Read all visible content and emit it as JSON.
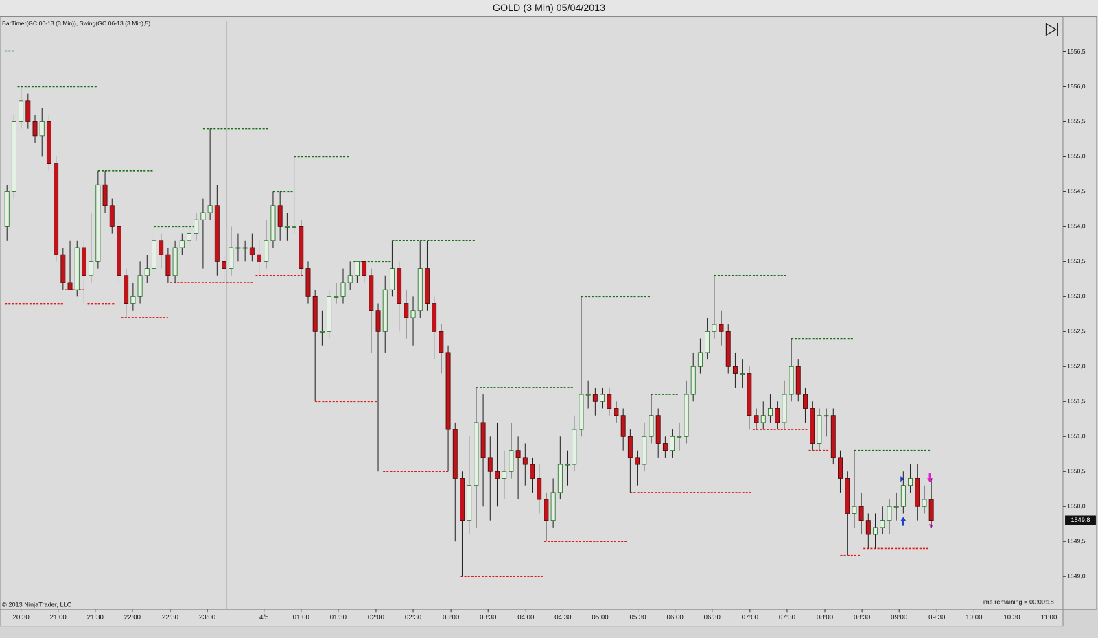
{
  "chart_data": {
    "type": "candlestick",
    "title": "GOLD (3 Min)  05/04/2013",
    "subtitle": "BarTimer(GC 06-13 (3 Min)), Swing(GC 06-13 (3 Min),5)",
    "annotations": [
      "© 2013 NinjaTrader, LLC",
      "Time remaining = 00:00:18"
    ],
    "last_price": {
      "value": 1549.8,
      "label": "1549,8"
    },
    "up_color": "#e4f1e4",
    "up_border": "#1d6b1d",
    "down_color": "#c0141a",
    "down_border": "#4a0808",
    "swing_high_color": "#177017",
    "swing_low_color": "#e01a1a",
    "candles": {
      "open": [
        1554.0,
        1554.5,
        1555.5,
        1555.8,
        1555.5,
        1555.3,
        1555.5,
        1554.9,
        1553.6,
        1553.2,
        1553.1,
        1553.7,
        1553.3,
        1553.5,
        1554.6,
        1554.3,
        1554.0,
        1553.3,
        1552.9,
        1553.0,
        1553.3,
        1553.4,
        1553.8,
        1553.6,
        1553.3,
        1553.7,
        1553.8,
        1553.9,
        1554.1,
        1554.2,
        1554.3,
        1553.5,
        1553.4,
        1553.7,
        1553.7,
        1553.7,
        1553.6,
        1553.5,
        1553.8,
        1554.3,
        1554.0,
        1554.0,
        1554.0,
        1553.4,
        1553.0,
        1552.5,
        1552.5,
        1553.0,
        1553.0,
        1553.2,
        1553.3,
        1553.5,
        1553.3,
        1552.8,
        1552.5,
        1553.1,
        1553.4,
        1552.9,
        1552.7,
        1552.8,
        1553.4,
        1552.9,
        1552.5,
        1552.2,
        1551.1,
        1550.4,
        1549.8,
        1550.3,
        1551.2,
        1550.7,
        1550.5,
        1550.4,
        1550.5,
        1550.8,
        1550.7,
        1550.6,
        1550.4,
        1550.1,
        1549.8,
        1550.2,
        1550.6,
        1550.6,
        1551.1,
        1551.6,
        1551.6,
        1551.5,
        1551.6,
        1551.4,
        1551.3,
        1551.0,
        1550.7,
        1550.6,
        1551.0,
        1551.3,
        1550.9,
        1550.8,
        1551.0,
        1551.0,
        1551.6,
        1552.0,
        1552.2,
        1552.5,
        1552.6,
        1552.5,
        1552.0,
        1551.9,
        1551.9,
        1551.3,
        1551.2,
        1551.3,
        1551.4,
        1551.2,
        1551.6,
        1552.0,
        1551.6,
        1551.4,
        1550.9,
        1551.3,
        1551.3,
        1550.7,
        1550.4,
        1549.9,
        1550.0,
        1549.8,
        1549.6,
        1549.7,
        1549.8,
        1550.0,
        1550.0,
        1550.3,
        1550.4,
        1550.0,
        1550.1
      ],
      "high": [
        1554.6,
        1555.6,
        1556.0,
        1555.9,
        1555.6,
        1555.7,
        1555.6,
        1555.0,
        1553.7,
        1553.8,
        1553.8,
        1553.8,
        1554.2,
        1554.8,
        1554.8,
        1554.4,
        1554.1,
        1553.4,
        1553.2,
        1553.5,
        1553.6,
        1554.0,
        1553.9,
        1553.7,
        1553.8,
        1553.9,
        1554.0,
        1554.2,
        1554.4,
        1555.4,
        1554.6,
        1553.6,
        1554.0,
        1553.9,
        1553.8,
        1553.9,
        1553.8,
        1554.1,
        1554.5,
        1554.5,
        1554.2,
        1555.0,
        1554.1,
        1553.5,
        1553.1,
        1552.8,
        1553.1,
        1553.2,
        1553.4,
        1553.5,
        1553.5,
        1553.5,
        1553.4,
        1552.9,
        1553.3,
        1553.8,
        1553.5,
        1553.1,
        1553.0,
        1553.8,
        1553.8,
        1553.0,
        1552.6,
        1552.3,
        1551.2,
        1550.5,
        1551.0,
        1551.7,
        1551.6,
        1551.0,
        1551.2,
        1550.8,
        1551.2,
        1551.0,
        1550.9,
        1550.7,
        1550.6,
        1550.2,
        1550.4,
        1551.0,
        1550.8,
        1551.3,
        1553.0,
        1551.8,
        1551.7,
        1551.7,
        1551.7,
        1551.5,
        1551.4,
        1551.1,
        1550.8,
        1551.2,
        1551.6,
        1551.4,
        1551.0,
        1551.1,
        1551.2,
        1551.8,
        1552.2,
        1552.4,
        1552.7,
        1553.3,
        1552.8,
        1552.6,
        1552.2,
        1552.1,
        1552.0,
        1551.4,
        1551.5,
        1551.6,
        1551.5,
        1551.8,
        1552.4,
        1552.1,
        1551.7,
        1551.5,
        1551.4,
        1551.4,
        1551.4,
        1550.8,
        1550.5,
        1550.8,
        1550.2,
        1549.9,
        1549.9,
        1550.0,
        1550.1,
        1550.2,
        1550.5,
        1550.6,
        1550.6,
        1550.3,
        1550.4
      ],
      "low": [
        1553.8,
        1554.4,
        1555.4,
        1555.4,
        1555.2,
        1555.0,
        1554.8,
        1553.5,
        1553.1,
        1553.1,
        1553.0,
        1552.9,
        1553.2,
        1553.4,
        1554.2,
        1553.9,
        1553.2,
        1552.7,
        1552.8,
        1552.9,
        1553.2,
        1553.3,
        1553.4,
        1553.2,
        1553.2,
        1553.6,
        1553.7,
        1553.8,
        1553.4,
        1554.1,
        1553.3,
        1553.2,
        1553.3,
        1553.5,
        1553.5,
        1553.5,
        1553.3,
        1553.4,
        1553.7,
        1553.8,
        1553.8,
        1553.9,
        1553.3,
        1552.9,
        1551.5,
        1552.3,
        1552.4,
        1552.9,
        1552.9,
        1553.1,
        1553.2,
        1553.2,
        1552.2,
        1550.5,
        1552.2,
        1553.0,
        1552.5,
        1552.4,
        1552.3,
        1552.7,
        1552.8,
        1552.1,
        1551.9,
        1550.5,
        1549.5,
        1549.0,
        1549.6,
        1549.7,
        1550.0,
        1549.8,
        1550.0,
        1550.1,
        1550.4,
        1550.1,
        1550.3,
        1550.2,
        1549.9,
        1549.5,
        1549.7,
        1550.1,
        1550.3,
        1550.5,
        1551.0,
        1551.4,
        1551.3,
        1551.4,
        1551.3,
        1551.2,
        1550.8,
        1550.2,
        1550.3,
        1550.5,
        1550.9,
        1550.7,
        1550.7,
        1550.7,
        1550.8,
        1550.9,
        1551.5,
        1551.9,
        1552.1,
        1552.4,
        1552.3,
        1551.9,
        1551.7,
        1551.7,
        1551.1,
        1551.1,
        1551.1,
        1551.2,
        1551.1,
        1551.1,
        1551.5,
        1551.5,
        1551.2,
        1550.8,
        1550.8,
        1551.0,
        1550.6,
        1550.2,
        1549.3,
        1549.7,
        1549.6,
        1549.4,
        1549.4,
        1549.6,
        1549.6,
        1549.8,
        1549.9,
        1550.2,
        1549.8,
        1549.9,
        1549.7
      ],
      "close": [
        1554.5,
        1555.5,
        1555.8,
        1555.5,
        1555.3,
        1555.5,
        1554.9,
        1553.6,
        1553.2,
        1553.1,
        1553.7,
        1553.3,
        1553.5,
        1554.6,
        1554.3,
        1554.0,
        1553.3,
        1552.9,
        1553.0,
        1553.3,
        1553.4,
        1553.8,
        1553.6,
        1553.3,
        1553.7,
        1553.8,
        1553.9,
        1554.1,
        1554.2,
        1554.3,
        1553.5,
        1553.4,
        1553.7,
        1553.7,
        1553.7,
        1553.6,
        1553.5,
        1553.8,
        1554.3,
        1554.0,
        1554.0,
        1554.0,
        1553.4,
        1553.0,
        1552.5,
        1552.5,
        1553.0,
        1553.0,
        1553.2,
        1553.3,
        1553.5,
        1553.3,
        1552.8,
        1552.5,
        1553.1,
        1553.4,
        1552.9,
        1552.7,
        1552.8,
        1553.4,
        1552.9,
        1552.5,
        1552.2,
        1551.1,
        1550.4,
        1549.8,
        1550.3,
        1551.2,
        1550.7,
        1550.5,
        1550.4,
        1550.5,
        1550.8,
        1550.7,
        1550.6,
        1550.4,
        1550.1,
        1549.8,
        1550.2,
        1550.6,
        1550.6,
        1551.1,
        1551.6,
        1551.6,
        1551.5,
        1551.6,
        1551.4,
        1551.3,
        1551.0,
        1550.7,
        1550.6,
        1551.0,
        1551.3,
        1550.9,
        1550.8,
        1551.0,
        1551.0,
        1551.6,
        1552.0,
        1552.2,
        1552.5,
        1552.6,
        1552.5,
        1552.0,
        1551.9,
        1551.9,
        1551.3,
        1551.2,
        1551.3,
        1551.4,
        1551.2,
        1551.6,
        1552.0,
        1551.6,
        1551.4,
        1550.9,
        1551.3,
        1551.3,
        1550.7,
        1550.4,
        1549.9,
        1550.0,
        1549.8,
        1549.6,
        1549.7,
        1549.8,
        1550.0,
        1550.0,
        1550.3,
        1550.4,
        1550.0,
        1550.1,
        1549.8
      ]
    },
    "swing_highs": [
      {
        "start": 1.5,
        "end": 13,
        "price": 1556.0
      },
      {
        "start": 13,
        "end": 21,
        "price": 1554.8
      },
      {
        "start": 21,
        "end": 27,
        "price": 1554.0
      },
      {
        "start": 28,
        "end": 37.5,
        "price": 1555.4
      },
      {
        "start": 38,
        "end": 41,
        "price": 1554.5
      },
      {
        "start": 41,
        "end": 49,
        "price": 1555.0
      },
      {
        "start": 49.5,
        "end": 55,
        "price": 1553.5
      },
      {
        "start": 55,
        "end": 67,
        "price": 1553.8
      },
      {
        "start": 67,
        "end": 81,
        "price": 1551.7
      },
      {
        "start": 82,
        "end": 92,
        "price": 1553.0
      },
      {
        "start": 92,
        "end": 96,
        "price": 1551.6
      },
      {
        "start": 101,
        "end": 111.5,
        "price": 1553.3
      },
      {
        "start": 112,
        "end": 121,
        "price": 1552.4
      },
      {
        "start": 121,
        "end": 132,
        "price": 1550.8
      }
    ],
    "swing_lows": [
      {
        "start": -0.3,
        "end": 8,
        "price": 1552.9
      },
      {
        "start": 8.3,
        "end": 11,
        "price": 1553.1
      },
      {
        "start": 11.5,
        "end": 15.5,
        "price": 1552.9
      },
      {
        "start": 16.3,
        "end": 23,
        "price": 1552.7
      },
      {
        "start": 23.3,
        "end": 35.3,
        "price": 1553.2
      },
      {
        "start": 35.5,
        "end": 42.3,
        "price": 1553.3
      },
      {
        "start": 44,
        "end": 53,
        "price": 1551.5
      },
      {
        "start": 53.7,
        "end": 63,
        "price": 1550.5
      },
      {
        "start": 64.8,
        "end": 76.5,
        "price": 1549.0
      },
      {
        "start": 76.7,
        "end": 88.5,
        "price": 1549.5
      },
      {
        "start": 89,
        "end": 106.3,
        "price": 1550.2
      },
      {
        "start": 106.5,
        "end": 114.3,
        "price": 1551.1
      },
      {
        "start": 114.5,
        "end": 117.5,
        "price": 1550.8
      },
      {
        "start": 119,
        "end": 122,
        "price": 1549.3
      },
      {
        "start": 122.3,
        "end": 131.5,
        "price": 1549.4
      }
    ],
    "xlim": [
      -1,
      150.2
    ],
    "xticks": [
      {
        "value": 2,
        "label": "20:30"
      },
      {
        "value": 7.3,
        "label": "21:00"
      },
      {
        "value": 12.6,
        "label": "21:30"
      },
      {
        "value": 17.9,
        "label": "22:00"
      },
      {
        "value": 23.3,
        "label": "22:30"
      },
      {
        "value": 28.6,
        "label": "23:00"
      },
      {
        "value": 36.7,
        "label": "4/5"
      },
      {
        "value": 42,
        "label": "01:00"
      },
      {
        "value": 47.3,
        "label": "01:30"
      },
      {
        "value": 52.7,
        "label": "02:00"
      },
      {
        "value": 58,
        "label": "02:30"
      },
      {
        "value": 63.4,
        "label": "03:00"
      },
      {
        "value": 68.7,
        "label": "03:30"
      },
      {
        "value": 74.1,
        "label": "04:00"
      },
      {
        "value": 79.4,
        "label": "04:30"
      },
      {
        "value": 84.7,
        "label": "05:00"
      },
      {
        "value": 90.1,
        "label": "05:30"
      },
      {
        "value": 95.4,
        "label": "06:00"
      },
      {
        "value": 100.7,
        "label": "06:30"
      },
      {
        "value": 106.1,
        "label": "07:00"
      },
      {
        "value": 111.4,
        "label": "07:30"
      },
      {
        "value": 116.8,
        "label": "08:00"
      },
      {
        "value": 122.1,
        "label": "08:30"
      },
      {
        "value": 127.4,
        "label": "09:00"
      },
      {
        "value": 132.8,
        "label": "09:30"
      },
      {
        "value": 138.1,
        "label": "10:00"
      },
      {
        "value": 143.5,
        "label": "10:30"
      },
      {
        "value": 148.8,
        "label": "11:00"
      }
    ],
    "ylim": [
      1548.53,
      1557.0
    ],
    "yticks": [
      {
        "value": 1549.0,
        "label": "1549,0"
      },
      {
        "value": 1549.5,
        "label": "1549,5"
      },
      {
        "value": 1550.0,
        "label": "1550,0"
      },
      {
        "value": 1550.5,
        "label": "1550,5"
      },
      {
        "value": 1551.0,
        "label": "1551,0"
      },
      {
        "value": 1551.5,
        "label": "1551,5"
      },
      {
        "value": 1552.0,
        "label": "1552,0"
      },
      {
        "value": 1552.5,
        "label": "1552,5"
      },
      {
        "value": 1553.0,
        "label": "1553,0"
      },
      {
        "value": 1553.5,
        "label": "1553,5"
      },
      {
        "value": 1554.0,
        "label": "1554,0"
      },
      {
        "value": 1554.5,
        "label": "1554,5"
      },
      {
        "value": 1555.0,
        "label": "1555,0"
      },
      {
        "value": 1555.5,
        "label": "1555,5"
      },
      {
        "value": 1556.0,
        "label": "1556,0"
      },
      {
        "value": 1556.5,
        "label": "1556,5"
      }
    ]
  }
}
